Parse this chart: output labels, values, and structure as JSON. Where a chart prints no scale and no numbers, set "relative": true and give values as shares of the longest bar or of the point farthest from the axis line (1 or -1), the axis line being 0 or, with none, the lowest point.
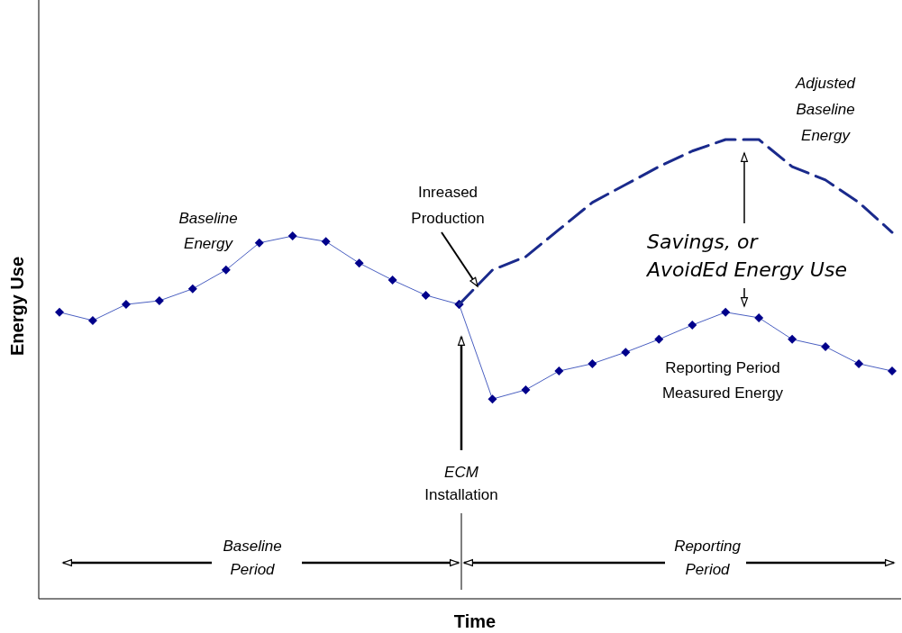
{
  "chart_data": {
    "type": "line",
    "relative": true,
    "xlabel": "Time",
    "ylabel": "Energy Use",
    "categories": [
      null,
      null,
      null,
      null,
      null,
      null,
      null,
      null,
      null,
      null,
      null,
      null,
      null,
      null,
      null,
      null,
      null,
      null,
      null,
      null,
      null,
      null,
      null,
      null,
      null,
      null
    ],
    "series": [
      {
        "name": "Baseline Energy",
        "color": "#00008b",
        "marker": "diamond",
        "line_style": "solid",
        "values": [
          0.624,
          0.606,
          0.641,
          0.649,
          0.675,
          0.716,
          0.775,
          0.79,
          0.778,
          0.731,
          0.694,
          0.661,
          0.641,
          null,
          null,
          null,
          null,
          null,
          null,
          null,
          null,
          null,
          null,
          null,
          null,
          null
        ]
      },
      {
        "name": "Reporting Period Measured Energy",
        "color": "#00008b",
        "marker": "diamond",
        "line_style": "solid",
        "values": [
          null,
          null,
          null,
          null,
          null,
          null,
          null,
          null,
          null,
          null,
          null,
          null,
          0.641,
          0.435,
          0.455,
          0.496,
          0.512,
          0.537,
          0.565,
          0.596,
          0.624,
          0.612,
          0.565,
          0.549,
          0.512,
          0.496
        ]
      },
      {
        "name": "Adjusted Baseline Energy",
        "color": "#1a2a8c",
        "marker": "none",
        "line_style": "dashed",
        "values": [
          null,
          null,
          null,
          null,
          null,
          null,
          null,
          null,
          null,
          null,
          null,
          null,
          0.641,
          0.716,
          0.745,
          0.804,
          0.863,
          0.902,
          0.941,
          0.975,
          1,
          1,
          0.941,
          0.912,
          0.863,
          0.798
        ]
      }
    ],
    "annotations": [
      "Inreased Production",
      "Savings, or AvoidEd Energy Use",
      "ECM Installation",
      "Baseline Period",
      "Reporting Period"
    ]
  }
}
